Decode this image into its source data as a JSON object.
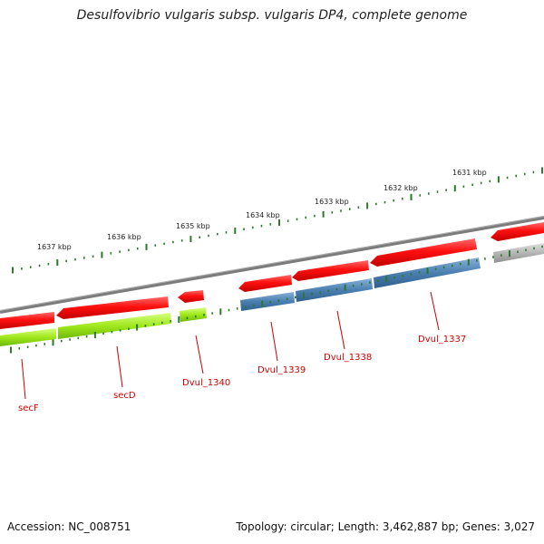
{
  "title": "Desulfovibrio vulgaris subsp. vulgaris DP4, complete genome",
  "footer": {
    "accession": "Accession: NC_008751",
    "topology": "Topology: circular; Length: 3,462,887 bp; Genes: 3,027"
  },
  "kbp_ticks": [
    {
      "label": "1637 kbp"
    },
    {
      "label": "1636 kbp"
    },
    {
      "label": "1635 kbp"
    },
    {
      "label": "1634 kbp"
    },
    {
      "label": "1633 kbp"
    },
    {
      "label": "1632 kbp"
    },
    {
      "label": "1631 kbp"
    }
  ],
  "gene_labels": [
    {
      "label": "secF"
    },
    {
      "label": "secD"
    },
    {
      "label": "Dvul_1340"
    },
    {
      "label": "Dvul_1339"
    },
    {
      "label": "Dvul_1338"
    },
    {
      "label": "Dvul_1337"
    }
  ],
  "colors": {
    "backbone": "#808080",
    "cds": "#ff1a1a",
    "green_feature": "#99ee22",
    "blue_feature": "#4a7fb0",
    "grey_feature": "#b8b8b8",
    "ticks": "#2a7a2a",
    "label": "#cc0000"
  }
}
